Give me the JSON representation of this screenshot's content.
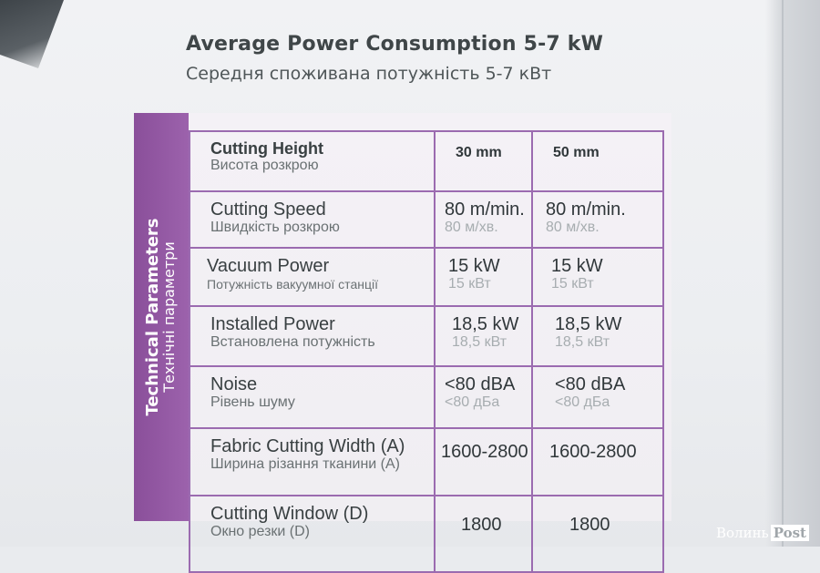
{
  "title": {
    "en": "Average Power Consumption 5-7 kW",
    "ua": "Середня споживана потужність 5-7 кВт"
  },
  "side_label": {
    "en": "Technical Parameters",
    "ua": "Технічні параметри"
  },
  "table": {
    "header": {
      "name_en": "Cutting Height",
      "name_ua": "Висота розкрою",
      "col_a": "30 mm",
      "col_b": "50 mm"
    },
    "rows": [
      {
        "name_en": "Cutting Speed",
        "name_ua": "Швидкість розкрою",
        "a_main": "80 m/min.",
        "a_sub": "80 м/хв.",
        "b_main": "80 m/min.",
        "b_sub": "80 м/хв."
      },
      {
        "name_en": "Vacuum Power",
        "name_ua": "Потужність вакуумної станції",
        "a_main": "15 kW",
        "a_sub": "15 кВт",
        "b_main": "15 kW",
        "b_sub": "15 кВт"
      },
      {
        "name_en": "Installed Power",
        "name_ua": "Встановлена потужність",
        "a_main": "18,5 kW",
        "a_sub": "18,5 кВт",
        "b_main": "18,5 kW",
        "b_sub": "18,5 кВт"
      },
      {
        "name_en": "Noise",
        "name_ua": "Рівень шуму",
        "a_main": "<80 dBA",
        "a_sub": "<80 дБа",
        "b_main": "<80 dBA",
        "b_sub": "<80 дБа"
      },
      {
        "name_en": "Fabric Cutting Width (A)",
        "name_ua": "Ширина різання тканини (А)",
        "a_main": "1600-2800",
        "a_sub": "",
        "b_main": "1600-2800",
        "b_sub": ""
      },
      {
        "name_en": "Cutting Window (D)",
        "name_ua": "Окно резки (D)",
        "a_main": "1800",
        "a_sub": "",
        "b_main": "1800",
        "b_sub": ""
      }
    ]
  },
  "watermark": {
    "part1": "Волинь",
    "part2": "Post"
  },
  "colors": {
    "purple_band": "#8a4f9a",
    "table_border": "#9b6bb0",
    "title_text": "#3f4648"
  }
}
